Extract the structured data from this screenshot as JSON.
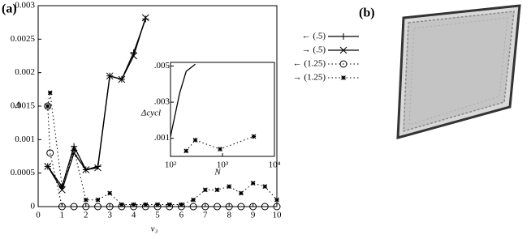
{
  "chart_data": [
    {
      "type": "line",
      "title": "(a)",
      "x_label": "v₃",
      "y_label": "Δ",
      "xlim": [
        0,
        10
      ],
      "ylim": [
        0,
        0.003
      ],
      "xticks": [
        0,
        1,
        2,
        3,
        4,
        5,
        6,
        7,
        8,
        9,
        10
      ],
      "yticks": [
        0,
        0.0005,
        0.001,
        0.0015,
        0.002,
        0.0025,
        0.003
      ],
      "series": [
        {
          "name": "← (.5)",
          "color": "#000000",
          "marker": "+",
          "dash": false,
          "x": [
            0.4,
            1.0,
            1.5,
            2.0,
            2.5,
            3.0,
            3.5,
            4.0,
            4.5
          ],
          "values": [
            0.0006,
            0.0003,
            0.0009,
            0.00055,
            0.0006,
            0.00195,
            0.0019,
            0.0023,
            0.0028
          ]
        },
        {
          "name": "→ (.5)",
          "color": "#000000",
          "marker": "x",
          "dash": false,
          "x": [
            0.4,
            1.0,
            1.5,
            2.0,
            2.5,
            3.0,
            3.5,
            4.0,
            4.5
          ],
          "values": [
            0.0006,
            0.00025,
            0.0008,
            0.00055,
            0.00058,
            0.00195,
            0.0019,
            0.00225,
            0.00282
          ]
        },
        {
          "name": "← (1.25)",
          "color": "#000000",
          "marker": "o",
          "dash": true,
          "x": [
            0.4,
            0.5,
            1.0,
            1.5,
            2.0,
            2.5,
            3.0,
            3.5,
            4.0,
            4.5,
            5.0,
            5.5,
            6.0,
            6.5,
            7.0,
            7.5,
            8.0,
            8.5,
            9.0,
            9.5,
            10.0
          ],
          "values": [
            0.0015,
            0.0008,
            0,
            0,
            0,
            0,
            0,
            0,
            0,
            0,
            0,
            0,
            0,
            0,
            0,
            0,
            0,
            0,
            0,
            0,
            0
          ]
        },
        {
          "name": "→ (1.25)",
          "color": "#000000",
          "marker": "*",
          "dash": true,
          "x": [
            0.4,
            0.5,
            1.0,
            1.5,
            2.0,
            2.5,
            3.0,
            3.5,
            4.0,
            4.5,
            5.0,
            5.5,
            6.0,
            6.5,
            7.0,
            7.5,
            8.0,
            8.5,
            9.0,
            9.5,
            10.0
          ],
          "values": [
            0.0015,
            0.0017,
            0.0003,
            0.00085,
            0.0001,
            0.0001,
            0.0002,
            3e-05,
            3e-05,
            3e-05,
            3e-05,
            3e-05,
            3e-05,
            0.0001,
            0.00025,
            0.00025,
            0.0003,
            0.0002,
            0.00035,
            0.0003,
            0.0001
          ]
        }
      ]
    },
    {
      "type": "line",
      "x_label": "N",
      "y_label": "Δcycl",
      "log_x": true,
      "xlim": [
        100,
        10000
      ],
      "ylim": [
        0,
        0.0052
      ],
      "xticks": [
        {
          "value": 100,
          "label": "10²"
        },
        {
          "value": 1000,
          "label": "10³"
        },
        {
          "value": 10000,
          "label": "10⁴"
        }
      ],
      "yticks": [
        {
          "value": 0.001,
          "label": ".001"
        },
        {
          "value": 0.003,
          "label": ".003"
        },
        {
          "value": 0.005,
          "label": ".005"
        }
      ],
      "series": [
        {
          "color": "#000000",
          "marker": "none",
          "dash": false,
          "x": [
            100,
            150,
            200,
            300
          ],
          "values": [
            0.0011,
            0.0035,
            0.0047,
            0.0051
          ]
        },
        {
          "color": "#000000",
          "marker": "*",
          "dash": true,
          "x": [
            200,
            300,
            900,
            4000
          ],
          "values": [
            0.0003,
            0.0009,
            0.0004,
            0.0011
          ]
        }
      ]
    }
  ],
  "panel_b": {
    "label": "(b)"
  }
}
